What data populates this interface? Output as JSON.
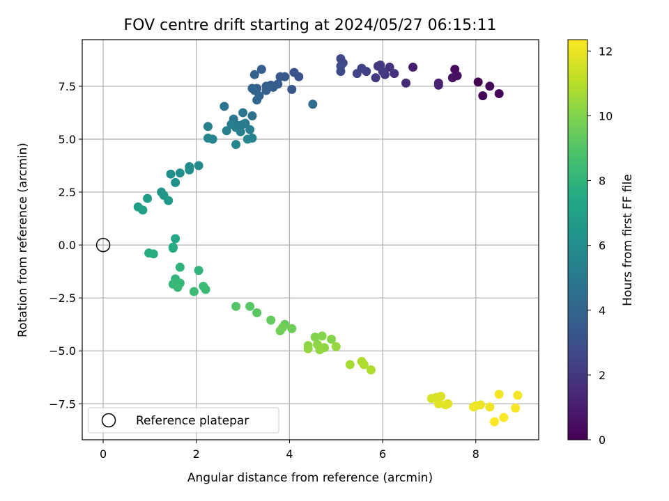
{
  "chart_data": {
    "type": "scatter",
    "title": "FOV centre drift starting at 2024/05/27 06:15:11",
    "xlabel": "Angular distance from reference (arcmin)",
    "ylabel": "Rotation from reference (arcmin)",
    "xlim": [
      -0.45,
      9.35
    ],
    "ylim": [
      -9.2,
      9.7
    ],
    "x_ticks": [
      0,
      2,
      4,
      6,
      8
    ],
    "x_tick_labels": [
      "0",
      "2",
      "4",
      "6",
      "8"
    ],
    "y_ticks": [
      -7.5,
      -5.0,
      -2.5,
      0.0,
      2.5,
      5.0,
      7.5
    ],
    "y_tick_labels": [
      "−7.5",
      "−5.0",
      "−2.5",
      "0.0",
      "2.5",
      "5.0",
      "7.5"
    ],
    "grid": true,
    "legend": {
      "position": "lower-left",
      "entries": [
        "Reference platepar"
      ]
    },
    "colorbar": {
      "label": "Hours from first FF file",
      "range": [
        0,
        12.35
      ],
      "ticks": [
        0,
        2,
        4,
        6,
        8,
        10,
        12
      ],
      "tick_labels": [
        "0",
        "2",
        "4",
        "6",
        "8",
        "10",
        "12"
      ],
      "colormap": "viridis"
    },
    "reference_point": {
      "x": 0,
      "y": 0,
      "label": "Reference platepar"
    },
    "series": [
      {
        "color_value_label": "Hours from first FF file",
        "points": [
          {
            "x": 8.05,
            "y": 7.7,
            "c": 0.0
          },
          {
            "x": 8.5,
            "y": 7.15,
            "c": 0.1
          },
          {
            "x": 8.15,
            "y": 7.05,
            "c": 0.2
          },
          {
            "x": 8.3,
            "y": 7.5,
            "c": 0.3
          },
          {
            "x": 7.55,
            "y": 8.3,
            "c": 0.4
          },
          {
            "x": 7.6,
            "y": 8.0,
            "c": 0.5
          },
          {
            "x": 7.5,
            "y": 7.9,
            "c": 0.6
          },
          {
            "x": 6.65,
            "y": 8.4,
            "c": 1.0
          },
          {
            "x": 7.2,
            "y": 7.65,
            "c": 1.1
          },
          {
            "x": 7.2,
            "y": 7.55,
            "c": 1.2
          },
          {
            "x": 6.5,
            "y": 7.65,
            "c": 1.5
          },
          {
            "x": 6.25,
            "y": 8.1,
            "c": 1.7
          },
          {
            "x": 6.15,
            "y": 8.4,
            "c": 1.8
          },
          {
            "x": 6.05,
            "y": 8.05,
            "c": 1.9
          },
          {
            "x": 5.95,
            "y": 8.5,
            "c": 2.0
          },
          {
            "x": 5.9,
            "y": 8.45,
            "c": 2.05
          },
          {
            "x": 5.85,
            "y": 7.9,
            "c": 2.1
          },
          {
            "x": 6.0,
            "y": 8.2,
            "c": 2.15
          },
          {
            "x": 5.65,
            "y": 8.2,
            "c": 2.3
          },
          {
            "x": 5.55,
            "y": 8.35,
            "c": 2.4
          },
          {
            "x": 5.45,
            "y": 8.1,
            "c": 2.5
          },
          {
            "x": 5.15,
            "y": 8.6,
            "c": 2.6
          },
          {
            "x": 5.1,
            "y": 8.8,
            "c": 2.7
          },
          {
            "x": 5.1,
            "y": 8.2,
            "c": 2.8
          },
          {
            "x": 5.1,
            "y": 8.45,
            "c": 2.9
          },
          {
            "x": 4.2,
            "y": 7.95,
            "c": 3.1
          },
          {
            "x": 4.1,
            "y": 8.15,
            "c": 3.2
          },
          {
            "x": 4.05,
            "y": 7.35,
            "c": 3.3
          },
          {
            "x": 3.9,
            "y": 7.95,
            "c": 3.4
          },
          {
            "x": 3.8,
            "y": 7.95,
            "c": 3.45
          },
          {
            "x": 3.75,
            "y": 7.6,
            "c": 3.5
          },
          {
            "x": 3.65,
            "y": 7.45,
            "c": 3.55
          },
          {
            "x": 3.6,
            "y": 7.55,
            "c": 3.6
          },
          {
            "x": 3.5,
            "y": 7.5,
            "c": 3.65
          },
          {
            "x": 3.5,
            "y": 7.3,
            "c": 3.7
          },
          {
            "x": 3.4,
            "y": 8.3,
            "c": 3.75
          },
          {
            "x": 3.35,
            "y": 7.05,
            "c": 3.8
          },
          {
            "x": 3.3,
            "y": 7.4,
            "c": 3.85
          },
          {
            "x": 3.25,
            "y": 8.05,
            "c": 3.9
          },
          {
            "x": 3.25,
            "y": 7.3,
            "c": 3.95
          },
          {
            "x": 3.2,
            "y": 7.4,
            "c": 4.0
          },
          {
            "x": 3.3,
            "y": 6.85,
            "c": 4.1
          },
          {
            "x": 4.5,
            "y": 6.65,
            "c": 4.4
          },
          {
            "x": 3.2,
            "y": 6.1,
            "c": 4.6
          },
          {
            "x": 2.6,
            "y": 6.55,
            "c": 4.7
          },
          {
            "x": 3.0,
            "y": 6.25,
            "c": 4.8
          },
          {
            "x": 2.8,
            "y": 5.95,
            "c": 4.9
          },
          {
            "x": 2.9,
            "y": 5.65,
            "c": 5.0
          },
          {
            "x": 3.0,
            "y": 5.7,
            "c": 5.05
          },
          {
            "x": 3.05,
            "y": 5.75,
            "c": 5.1
          },
          {
            "x": 2.85,
            "y": 5.55,
            "c": 5.15
          },
          {
            "x": 3.15,
            "y": 5.45,
            "c": 5.2
          },
          {
            "x": 2.75,
            "y": 5.7,
            "c": 5.25
          },
          {
            "x": 2.95,
            "y": 5.35,
            "c": 5.3
          },
          {
            "x": 2.65,
            "y": 5.4,
            "c": 5.35
          },
          {
            "x": 2.25,
            "y": 5.6,
            "c": 5.4
          },
          {
            "x": 3.2,
            "y": 5.05,
            "c": 5.5
          },
          {
            "x": 3.1,
            "y": 5.0,
            "c": 5.55
          },
          {
            "x": 2.35,
            "y": 5.0,
            "c": 5.6
          },
          {
            "x": 2.25,
            "y": 5.05,
            "c": 5.65
          },
          {
            "x": 2.85,
            "y": 4.75,
            "c": 5.7
          },
          {
            "x": 2.05,
            "y": 3.75,
            "c": 5.9
          },
          {
            "x": 1.85,
            "y": 3.7,
            "c": 6.0
          },
          {
            "x": 1.85,
            "y": 3.55,
            "c": 6.05
          },
          {
            "x": 1.65,
            "y": 3.4,
            "c": 6.1
          },
          {
            "x": 1.45,
            "y": 3.35,
            "c": 6.15
          },
          {
            "x": 1.55,
            "y": 2.95,
            "c": 6.2
          },
          {
            "x": 1.25,
            "y": 2.5,
            "c": 6.4
          },
          {
            "x": 1.3,
            "y": 2.35,
            "c": 6.5
          },
          {
            "x": 1.4,
            "y": 2.1,
            "c": 6.6
          },
          {
            "x": 0.95,
            "y": 2.2,
            "c": 6.8
          },
          {
            "x": 0.75,
            "y": 1.8,
            "c": 6.9
          },
          {
            "x": 0.85,
            "y": 1.65,
            "c": 7.0
          },
          {
            "x": 1.55,
            "y": 0.3,
            "c": 7.4
          },
          {
            "x": 1.5,
            "y": -0.1,
            "c": 7.5
          },
          {
            "x": 1.5,
            "y": -0.15,
            "c": 7.55
          },
          {
            "x": 0.98,
            "y": -0.38,
            "c": 7.6
          },
          {
            "x": 1.08,
            "y": -0.42,
            "c": 7.65
          },
          {
            "x": 1.65,
            "y": -1.05,
            "c": 7.9
          },
          {
            "x": 2.05,
            "y": -1.2,
            "c": 8.0
          },
          {
            "x": 1.55,
            "y": -1.6,
            "c": 8.1
          },
          {
            "x": 1.5,
            "y": -1.85,
            "c": 8.15
          },
          {
            "x": 1.65,
            "y": -1.8,
            "c": 8.2
          },
          {
            "x": 1.6,
            "y": -2.0,
            "c": 8.25
          },
          {
            "x": 2.15,
            "y": -1.95,
            "c": 8.3
          },
          {
            "x": 2.2,
            "y": -2.1,
            "c": 8.35
          },
          {
            "x": 1.95,
            "y": -2.2,
            "c": 8.4
          },
          {
            "x": 2.85,
            "y": -2.9,
            "c": 9.0
          },
          {
            "x": 3.15,
            "y": -2.9,
            "c": 9.1
          },
          {
            "x": 3.3,
            "y": -3.2,
            "c": 9.2
          },
          {
            "x": 3.6,
            "y": -3.55,
            "c": 9.4
          },
          {
            "x": 3.9,
            "y": -3.75,
            "c": 9.5
          },
          {
            "x": 4.05,
            "y": -3.95,
            "c": 9.6
          },
          {
            "x": 3.8,
            "y": -4.05,
            "c": 9.65
          },
          {
            "x": 3.85,
            "y": -3.9,
            "c": 9.7
          },
          {
            "x": 4.55,
            "y": -4.35,
            "c": 10.0
          },
          {
            "x": 4.7,
            "y": -4.3,
            "c": 10.05
          },
          {
            "x": 4.9,
            "y": -4.45,
            "c": 10.1
          },
          {
            "x": 4.4,
            "y": -4.75,
            "c": 10.15
          },
          {
            "x": 4.6,
            "y": -4.7,
            "c": 10.2
          },
          {
            "x": 4.75,
            "y": -4.85,
            "c": 10.25
          },
          {
            "x": 4.4,
            "y": -4.9,
            "c": 10.3
          },
          {
            "x": 4.65,
            "y": -4.95,
            "c": 10.35
          },
          {
            "x": 5.0,
            "y": -4.8,
            "c": 10.4
          },
          {
            "x": 5.3,
            "y": -5.65,
            "c": 10.7
          },
          {
            "x": 5.55,
            "y": -5.5,
            "c": 10.8
          },
          {
            "x": 5.6,
            "y": -5.65,
            "c": 10.85
          },
          {
            "x": 5.75,
            "y": -5.9,
            "c": 10.9
          },
          {
            "x": 7.05,
            "y": -7.25,
            "c": 11.6
          },
          {
            "x": 7.15,
            "y": -7.2,
            "c": 11.65
          },
          {
            "x": 7.25,
            "y": -7.15,
            "c": 11.7
          },
          {
            "x": 7.2,
            "y": -7.5,
            "c": 11.75
          },
          {
            "x": 7.4,
            "y": -7.5,
            "c": 11.8
          },
          {
            "x": 7.35,
            "y": -7.55,
            "c": 11.85
          },
          {
            "x": 8.0,
            "y": -7.6,
            "c": 11.95
          },
          {
            "x": 8.1,
            "y": -7.55,
            "c": 12.0
          },
          {
            "x": 7.95,
            "y": -7.65,
            "c": 12.05
          },
          {
            "x": 8.3,
            "y": -7.65,
            "c": 12.1
          },
          {
            "x": 8.5,
            "y": -7.05,
            "c": 12.15
          },
          {
            "x": 8.9,
            "y": -7.1,
            "c": 12.2
          },
          {
            "x": 8.85,
            "y": -7.7,
            "c": 12.25
          },
          {
            "x": 8.6,
            "y": -8.15,
            "c": 12.3
          },
          {
            "x": 8.4,
            "y": -8.35,
            "c": 12.35
          }
        ]
      }
    ]
  }
}
